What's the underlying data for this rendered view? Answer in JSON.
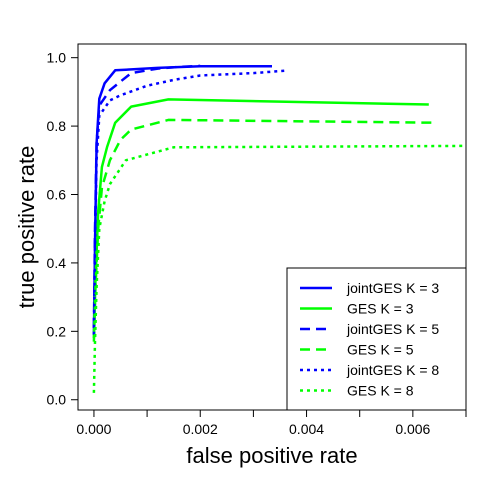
{
  "chart_data": {
    "type": "line",
    "title": "",
    "xlabel": "false positive rate",
    "ylabel": "true positive rate",
    "xlim": [
      -0.0003,
      0.007
    ],
    "ylim": [
      -0.03,
      1.04
    ],
    "x_ticks": [
      0,
      0.001,
      0.002,
      0.003,
      0.004,
      0.005,
      0.006,
      0.007
    ],
    "x_tick_labels": [
      "0.000",
      "",
      "0.002",
      "",
      "0.004",
      "",
      "0.006",
      ""
    ],
    "y_ticks": [
      0.0,
      0.2,
      0.4,
      0.6,
      0.8,
      1.0
    ],
    "y_tick_labels": [
      "0.0",
      "0.2",
      "0.4",
      "0.6",
      "0.8",
      "1.0"
    ],
    "grid": false,
    "legend_position": "bottom-right",
    "series": [
      {
        "name": "jointGES K = 3",
        "color": "#0000ff",
        "dash": "solid",
        "points": [
          [
            0,
            0.19
          ],
          [
            2e-05,
            0.45
          ],
          [
            5e-05,
            0.75
          ],
          [
            0.0001,
            0.88
          ],
          [
            0.0002,
            0.925
          ],
          [
            0.0004,
            0.963
          ],
          [
            0.0012,
            0.97
          ],
          [
            0.002,
            0.975
          ],
          [
            0.00335,
            0.975
          ]
        ]
      },
      {
        "name": "GES K = 3",
        "color": "#00ff00",
        "dash": "solid",
        "points": [
          [
            0,
            0.18
          ],
          [
            3e-05,
            0.35
          ],
          [
            8e-05,
            0.55
          ],
          [
            0.00015,
            0.68
          ],
          [
            0.00025,
            0.74
          ],
          [
            0.0004,
            0.81
          ],
          [
            0.0007,
            0.857
          ],
          [
            0.0014,
            0.878
          ],
          [
            0.0063,
            0.863
          ]
        ]
      },
      {
        "name": "jointGES K = 5",
        "color": "#0000ff",
        "dash": "long",
        "points": [
          [
            0,
            0.21
          ],
          [
            2e-05,
            0.5
          ],
          [
            5e-05,
            0.75
          ],
          [
            0.0001,
            0.86
          ],
          [
            0.0003,
            0.905
          ],
          [
            0.0005,
            0.93
          ],
          [
            0.0007,
            0.955
          ],
          [
            0.0012,
            0.968
          ],
          [
            0.0016,
            0.973
          ],
          [
            0.002,
            0.976
          ]
        ]
      },
      {
        "name": "GES K = 5",
        "color": "#00ff00",
        "dash": "long",
        "points": [
          [
            0,
            0.17
          ],
          [
            3e-05,
            0.33
          ],
          [
            8e-05,
            0.5
          ],
          [
            0.00015,
            0.62
          ],
          [
            0.0003,
            0.7
          ],
          [
            0.0005,
            0.76
          ],
          [
            0.0007,
            0.79
          ],
          [
            0.0014,
            0.818
          ],
          [
            0.0064,
            0.81
          ]
        ]
      },
      {
        "name": "jointGES K = 8",
        "color": "#0000ff",
        "dash": "dot",
        "points": [
          [
            0,
            0.19
          ],
          [
            2e-05,
            0.45
          ],
          [
            5e-05,
            0.7
          ],
          [
            0.0001,
            0.83
          ],
          [
            0.0003,
            0.875
          ],
          [
            0.0005,
            0.89
          ],
          [
            0.001,
            0.918
          ],
          [
            0.0015,
            0.935
          ],
          [
            0.002,
            0.948
          ],
          [
            0.003,
            0.955
          ],
          [
            0.0036,
            0.962
          ]
        ]
      },
      {
        "name": "GES K = 8",
        "color": "#00ff00",
        "dash": "dot",
        "points": [
          [
            0,
            0.02
          ],
          [
            2e-05,
            0.17
          ],
          [
            5e-05,
            0.33
          ],
          [
            0.0001,
            0.5
          ],
          [
            0.0002,
            0.58
          ],
          [
            0.0003,
            0.63
          ],
          [
            0.0006,
            0.7
          ],
          [
            0.0015,
            0.738
          ],
          [
            0.007,
            0.742
          ]
        ]
      }
    ]
  }
}
